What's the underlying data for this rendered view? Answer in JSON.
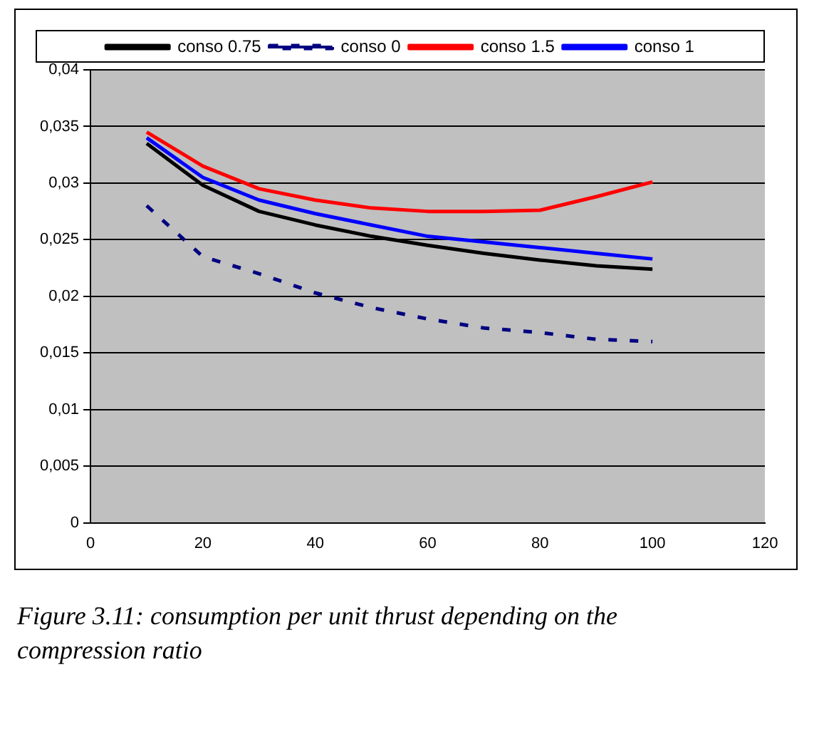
{
  "chart_data": {
    "type": "line",
    "x": [
      10,
      20,
      30,
      40,
      50,
      60,
      70,
      80,
      90,
      100
    ],
    "series": [
      {
        "name": "conso 0.75",
        "color": "#000000",
        "line_style": "solid",
        "values": [
          0.0335,
          0.0298,
          0.0275,
          0.0263,
          0.0253,
          0.0245,
          0.0238,
          0.0232,
          0.0227,
          0.0224
        ]
      },
      {
        "name": "conso 0",
        "color": "#000080",
        "line_style": "dashed",
        "values": [
          0.028,
          0.0235,
          0.022,
          0.0203,
          0.019,
          0.018,
          0.0172,
          0.0168,
          0.0162,
          0.016
        ]
      },
      {
        "name": "conso 1.5",
        "color": "#ff0000",
        "line_style": "solid",
        "values": [
          0.0345,
          0.0315,
          0.0295,
          0.0285,
          0.0278,
          0.0275,
          0.0275,
          0.0276,
          0.0288,
          0.0301
        ]
      },
      {
        "name": "conso 1",
        "color": "#0000ff",
        "line_style": "solid",
        "values": [
          0.034,
          0.0305,
          0.0285,
          0.0273,
          0.0263,
          0.0253,
          0.0248,
          0.0243,
          0.0238,
          0.0233
        ]
      }
    ],
    "xlim": [
      0,
      120
    ],
    "xticks": [
      0,
      20,
      40,
      60,
      80,
      100,
      120
    ],
    "ylim": [
      0,
      0.04
    ],
    "yticks": [
      {
        "value": 0,
        "label": "0"
      },
      {
        "value": 0.005,
        "label": "0,005"
      },
      {
        "value": 0.01,
        "label": "0,01"
      },
      {
        "value": 0.015,
        "label": "0,015"
      },
      {
        "value": 0.02,
        "label": "0,02"
      },
      {
        "value": 0.025,
        "label": "0,025"
      },
      {
        "value": 0.03,
        "label": "0,03"
      },
      {
        "value": 0.035,
        "label": "0,035"
      },
      {
        "value": 0.04,
        "label": "0,04"
      }
    ],
    "grid": "y",
    "legend": "top",
    "marker": "none",
    "annotations": [
      "Figure 3.11: consumption per unit thrust depending on the compression ratio"
    ]
  }
}
